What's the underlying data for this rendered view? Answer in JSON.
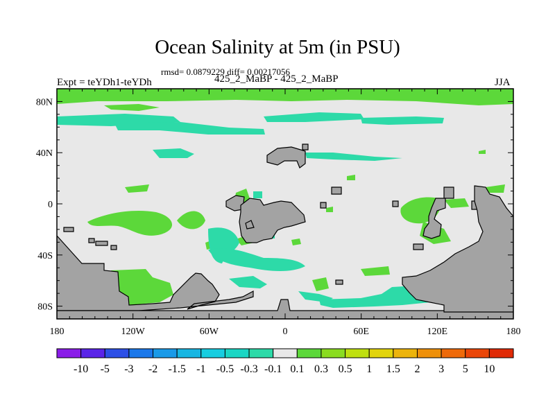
{
  "header": {
    "title": "Ocean Salinity at 5m (in PSU)",
    "stats": "rmsd= 0.0879229 diff= 0.00217056",
    "expt": "Expt = teYDh1-teYDh",
    "case": "425_2_MaBP - 425_2_MaBP",
    "season": "JJA"
  },
  "axes": {
    "x_ticks": [
      {
        "value": -180,
        "label": "180"
      },
      {
        "value": -120,
        "label": "120W"
      },
      {
        "value": -60,
        "label": "60W"
      },
      {
        "value": 0,
        "label": "0"
      },
      {
        "value": 60,
        "label": "60E"
      },
      {
        "value": 120,
        "label": "120E"
      },
      {
        "value": 180,
        "label": "180"
      }
    ],
    "y_ticks": [
      {
        "value": 80,
        "label": "80N"
      },
      {
        "value": 40,
        "label": "40N"
      },
      {
        "value": 0,
        "label": "0"
      },
      {
        "value": -40,
        "label": "40S"
      },
      {
        "value": -80,
        "label": "80S"
      }
    ],
    "xlim": [
      -180,
      180
    ],
    "ylim": [
      -90,
      90
    ]
  },
  "colorbar": {
    "labels": [
      "-10",
      "-5",
      "-3",
      "-2",
      "-1.5",
      "-1",
      "-0.5",
      "-0.3",
      "-0.1",
      "0.1",
      "0.3",
      "0.5",
      "1",
      "1.5",
      "2",
      "3",
      "5",
      "10"
    ],
    "colors": [
      "#8a1ce8",
      "#5a24e8",
      "#2c4fe6",
      "#1b78ea",
      "#1a9ae8",
      "#17b6e2",
      "#17cde0",
      "#1ad6c4",
      "#2ddaa8",
      "#e8e8e8",
      "#5cd83a",
      "#8adc20",
      "#bfe010",
      "#e2d40c",
      "#ecb40c",
      "#ee900a",
      "#ee6a0a",
      "#ea4608",
      "#e02a06"
    ]
  },
  "colors": {
    "background": "#e8e8e8",
    "land": "#a3a3a3",
    "positive": "#5cd83a",
    "negative": "#2ddaa8"
  }
}
